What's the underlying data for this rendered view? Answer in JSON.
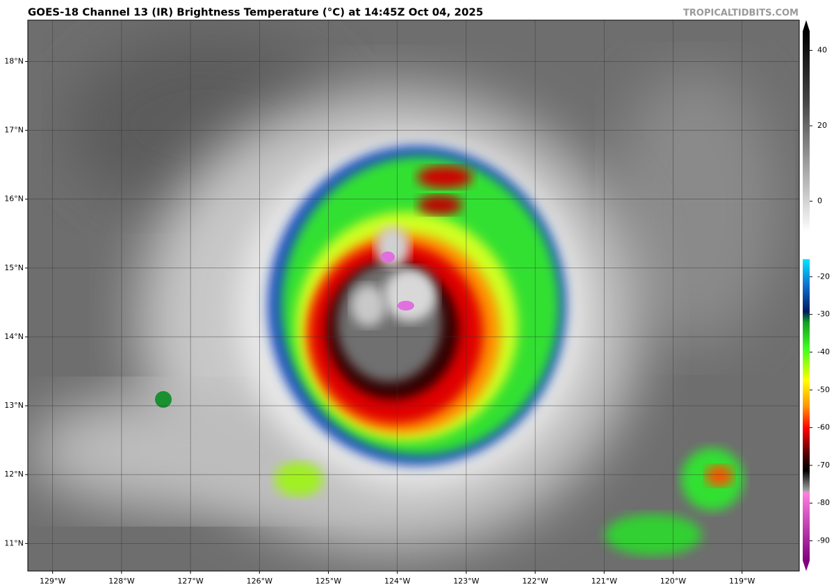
{
  "header": {
    "title": "GOES-18 Channel 13 (IR) Brightness Temperature (°C) at 14:45Z Oct 04, 2025",
    "watermark": "TROPICALTIDBITS.COM"
  },
  "map": {
    "lat_lim": [
      10.6,
      18.6
    ],
    "lon_lim": [
      -129.36,
      -118.17
    ],
    "lat_ticks": [
      {
        "value": 18,
        "label": "18°N"
      },
      {
        "value": 17,
        "label": "17°N"
      },
      {
        "value": 16,
        "label": "16°N"
      },
      {
        "value": 15,
        "label": "15°N"
      },
      {
        "value": 14,
        "label": "14°N"
      },
      {
        "value": 13,
        "label": "13°N"
      },
      {
        "value": 12,
        "label": "12°N"
      },
      {
        "value": 11,
        "label": "11°N"
      }
    ],
    "lon_ticks": [
      {
        "value": -129,
        "label": "129°W"
      },
      {
        "value": -128,
        "label": "128°W"
      },
      {
        "value": -127,
        "label": "127°W"
      },
      {
        "value": -126,
        "label": "126°W"
      },
      {
        "value": -125,
        "label": "125°W"
      },
      {
        "value": -124,
        "label": "124°W"
      },
      {
        "value": -123,
        "label": "123°W"
      },
      {
        "value": -122,
        "label": "122°W"
      },
      {
        "value": -121,
        "label": "121°W"
      },
      {
        "value": -120,
        "label": "120°W"
      },
      {
        "value": -119,
        "label": "119°W"
      }
    ]
  },
  "colorbar": {
    "lim": [
      -98,
      48
    ],
    "ticks": [
      40,
      20,
      0,
      -20,
      -30,
      -40,
      -50,
      -60,
      -70,
      -80,
      -90
    ]
  }
}
